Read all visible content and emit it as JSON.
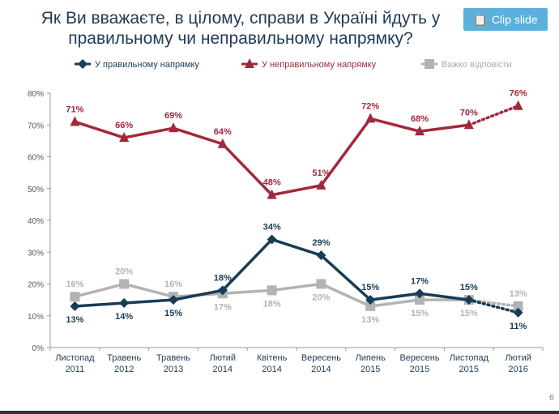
{
  "title": "Як Ви вважаєте, в цілому, справи в Україні йдуть у правильному чи неправильному напрямку?",
  "clip_slide": "Clip slide",
  "page_number": "6",
  "chart_data": {
    "type": "line",
    "categories": [
      [
        "Листопад",
        "2011"
      ],
      [
        "Травень",
        "2012"
      ],
      [
        "Травень",
        "2013"
      ],
      [
        "Лютий",
        "2014"
      ],
      [
        "Квітень",
        "2014"
      ],
      [
        "Вересень",
        "2014"
      ],
      [
        "Липень",
        "2015"
      ],
      [
        "Вересень",
        "2015"
      ],
      [
        "Листопад",
        "2015"
      ],
      [
        "Лютий",
        "2016"
      ]
    ],
    "ylim": [
      0,
      80
    ],
    "yticks": [
      "0%",
      "10%",
      "20%",
      "30%",
      "40%",
      "50%",
      "60%",
      "70%",
      "80%"
    ],
    "legend_position": "top",
    "last_segment_dotted": true,
    "series": [
      {
        "name": "У правильному напрямку",
        "color": "#173c55",
        "marker": "diamond",
        "values": [
          13,
          14,
          15,
          18,
          34,
          29,
          15,
          17,
          15,
          11
        ],
        "label_below": [
          true,
          true,
          true,
          false,
          false,
          false,
          false,
          false,
          false,
          true
        ]
      },
      {
        "name": "У неправильному напрямку",
        "color": "#a3293a",
        "marker": "triangle",
        "values": [
          71,
          66,
          69,
          64,
          48,
          51,
          72,
          68,
          70,
          76
        ],
        "label_below": [
          false,
          false,
          false,
          false,
          false,
          false,
          false,
          false,
          false,
          false
        ]
      },
      {
        "name": "Важко відповісти",
        "color": "#b3b3b3",
        "marker": "square",
        "values": [
          16,
          20,
          16,
          17,
          18,
          20,
          13,
          15,
          15,
          13
        ],
        "label_below": [
          false,
          false,
          false,
          true,
          true,
          true,
          true,
          true,
          true,
          false
        ]
      }
    ]
  }
}
